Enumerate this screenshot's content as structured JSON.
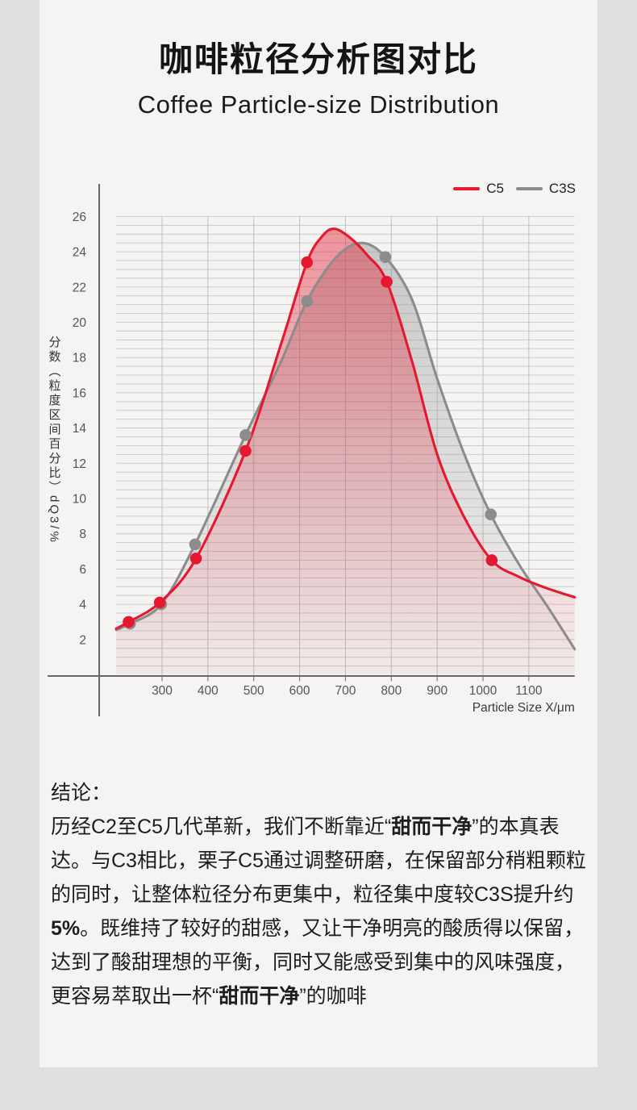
{
  "page": {
    "outer_bg": "#e1e0e0",
    "card_bg": "#f5f4f3"
  },
  "header": {
    "title": "咖啡粒径分析图对比",
    "subtitle": "Coffee Particle-size Distribution"
  },
  "chart_data": {
    "type": "line",
    "title": "咖啡粒径分析图对比",
    "subtitle": "Coffee Particle-size Distribution",
    "xlabel": "Particle Size X/μm",
    "ylabel": "分数（粒度区间百分比）dQ3/%",
    "xlim": [
      200,
      1200
    ],
    "ylim": [
      0,
      27
    ],
    "x_ticks": [
      300,
      400,
      500,
      600,
      700,
      800,
      900,
      1000,
      1100
    ],
    "y_ticks": [
      2,
      4,
      6,
      8,
      10,
      12,
      14,
      16,
      18,
      20,
      22,
      24,
      26
    ],
    "grid": {
      "on": true,
      "minor_y_step": 0.5,
      "minor_y_top": 26
    },
    "legend_position": "top-right",
    "axis_color": "#686868",
    "grid_color_h": "#cccccc",
    "grid_color_v": "#bfbfbf",
    "label_color": "#555555",
    "series": [
      {
        "name": "C5",
        "color": "#e5182f",
        "peak": [
          676,
          25.3
        ],
        "markers": [
          [
            227,
            3.0
          ],
          [
            295,
            4.1
          ],
          [
            374,
            6.6
          ],
          [
            482,
            12.7
          ],
          [
            616,
            23.4
          ],
          [
            790,
            22.3
          ],
          [
            1019,
            6.5
          ]
        ],
        "curve": [
          [
            200,
            2.62
          ],
          [
            227,
            3.0
          ],
          [
            295,
            4.1
          ],
          [
            374,
            6.6
          ],
          [
            482,
            12.7
          ],
          [
            560,
            18.8
          ],
          [
            616,
            23.4
          ],
          [
            650,
            24.9
          ],
          [
            676,
            25.3
          ],
          [
            710,
            24.8
          ],
          [
            748,
            23.8
          ],
          [
            790,
            22.3
          ],
          [
            845,
            17.8
          ],
          [
            900,
            12.5
          ],
          [
            958,
            9.0
          ],
          [
            1019,
            6.5
          ],
          [
            1075,
            5.6
          ],
          [
            1135,
            4.95
          ],
          [
            1200,
            4.4
          ]
        ]
      },
      {
        "name": "C3S",
        "color": "#8c8c8c",
        "peak": [
          735,
          24.5
        ],
        "markers": [
          [
            230,
            2.9
          ],
          [
            298,
            4.0
          ],
          [
            372,
            7.4
          ],
          [
            482,
            13.6
          ],
          [
            616,
            21.2
          ],
          [
            787,
            23.7
          ],
          [
            1017,
            9.1
          ]
        ],
        "curve": [
          [
            200,
            2.55
          ],
          [
            230,
            2.9
          ],
          [
            298,
            4.0
          ],
          [
            372,
            7.4
          ],
          [
            482,
            13.6
          ],
          [
            560,
            17.8
          ],
          [
            616,
            21.2
          ],
          [
            680,
            23.7
          ],
          [
            735,
            24.5
          ],
          [
            787,
            23.7
          ],
          [
            845,
            21.3
          ],
          [
            900,
            16.8
          ],
          [
            958,
            12.6
          ],
          [
            1017,
            9.1
          ],
          [
            1080,
            6.2
          ],
          [
            1140,
            3.9
          ],
          [
            1200,
            1.45
          ]
        ]
      }
    ]
  },
  "conclusion": {
    "heading": "结论：",
    "runs": [
      {
        "t": "历经C2至C5几代革新，我们不断靠近“",
        "b": false
      },
      {
        "t": "甜而干净",
        "b": true
      },
      {
        "t": "”的本真表达。与C3相比，栗子C5通过调整研磨，在保留部分稍粗颗粒的同时，让整体粒径分布更集中，粒径集中度较C3S提升约",
        "b": false
      },
      {
        "t": "5%",
        "b": true
      },
      {
        "t": "。既维持了较好的甜感，又让干净明亮的酸质得以保留，达到了酸甜理想的平衡，同时又能感受到集中的风味强度，更容易萃取出一杯“",
        "b": false
      },
      {
        "t": "甜而干净",
        "b": true
      },
      {
        "t": "”的咖啡",
        "b": false
      }
    ]
  }
}
